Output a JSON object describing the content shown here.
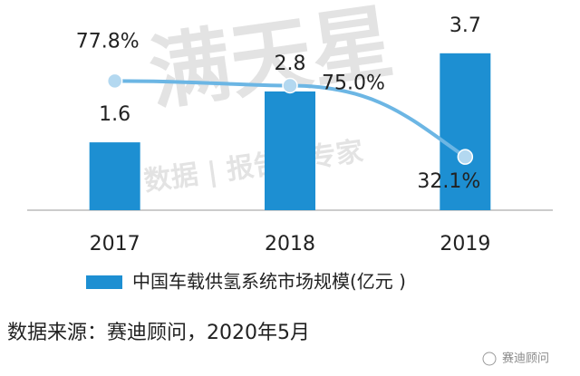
{
  "chart_data": {
    "type": "bar-line",
    "categories": [
      "2017",
      "2018",
      "2019"
    ],
    "series": [
      {
        "name": "中国车载供氢系统市场规模(亿元 )",
        "color": "#1d8fd2",
        "values": [
          1.6,
          2.8,
          3.7
        ]
      },
      {
        "type": "line",
        "axis": "y2",
        "color": "#6cb6e4",
        "values": [
          77.8,
          75.0,
          32.1
        ],
        "value_labels": [
          "77.8%",
          "75.0%",
          "32.1%"
        ]
      }
    ],
    "ylim": [
      0,
      4.7
    ],
    "y2lim": [
      0,
      120
    ],
    "source": "数据来源：赛迪顾问，2020年5月",
    "watermark": {
      "brand": "满天星",
      "tagline": "数据 | 报告 | 专家",
      "account": "赛迪顾问"
    }
  }
}
